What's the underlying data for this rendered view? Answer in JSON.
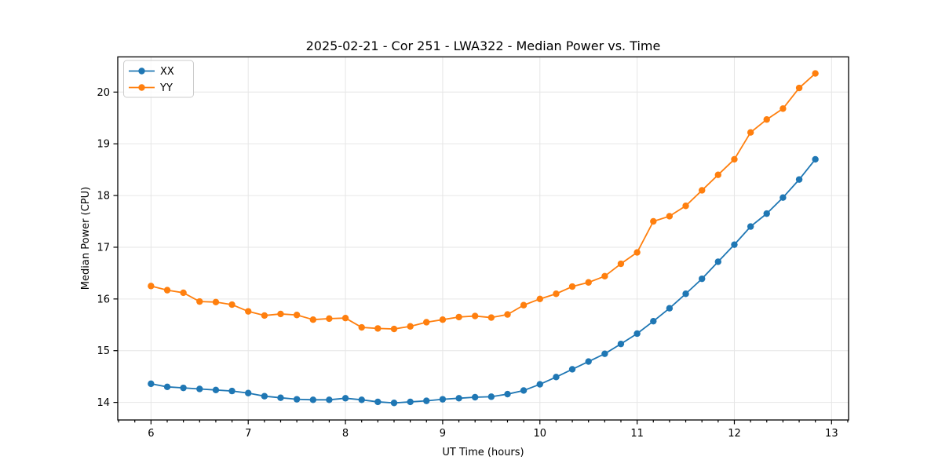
{
  "figure": {
    "background": "#ffffff",
    "title": "2025-02-21 - Cor 251 - LWA322 - Median Power vs. Time"
  },
  "axes": {
    "xlabel": "UT Time (hours)",
    "ylabel": "Median Power (CPU)",
    "xtick_labels": [
      "6",
      "7",
      "8",
      "9",
      "10",
      "11",
      "12",
      "13"
    ],
    "ytick_labels": [
      "14",
      "15",
      "16",
      "17",
      "18",
      "19",
      "20"
    ]
  },
  "legend": {
    "position": "upper left",
    "entries": [
      {
        "label": "XX",
        "color": "#1f77b4"
      },
      {
        "label": "YY",
        "color": "#ff7f0e"
      }
    ]
  },
  "style": {
    "grid_color": "#e6e6e6",
    "spine_color": "#000000",
    "legend_edge_color": "#cccccc",
    "series_xx_color": "#1f77b4",
    "series_yy_color": "#ff7f0e"
  },
  "chart_data": {
    "type": "line",
    "title": "2025-02-21 - Cor 251 - LWA322 - Median Power vs. Time",
    "xlabel": "UT Time (hours)",
    "ylabel": "Median Power (CPU)",
    "grid": true,
    "legend_position": "upper left",
    "xlim": [
      5.658,
      13.175
    ],
    "ylim": [
      13.66,
      20.68
    ],
    "xticks": [
      6,
      7,
      8,
      9,
      10,
      11,
      12,
      13
    ],
    "yticks": [
      14,
      15,
      16,
      17,
      18,
      19,
      20
    ],
    "x_minor_step": 0.16667,
    "x": [
      6.0,
      6.167,
      6.333,
      6.5,
      6.667,
      6.833,
      7.0,
      7.167,
      7.333,
      7.5,
      7.667,
      7.833,
      8.0,
      8.167,
      8.333,
      8.5,
      8.667,
      8.833,
      9.0,
      9.167,
      9.333,
      9.5,
      9.667,
      9.833,
      10.0,
      10.167,
      10.333,
      10.5,
      10.667,
      10.833,
      11.0,
      11.167,
      11.333,
      11.5,
      11.667,
      11.833,
      12.0,
      12.167,
      12.333,
      12.5,
      12.667,
      12.833
    ],
    "series": [
      {
        "name": "XX",
        "color": "#1f77b4",
        "marker": "circle",
        "values": [
          14.36,
          14.3,
          14.28,
          14.26,
          14.24,
          14.22,
          14.18,
          14.12,
          14.09,
          14.06,
          14.05,
          14.05,
          14.08,
          14.05,
          14.01,
          13.99,
          14.01,
          14.03,
          14.06,
          14.08,
          14.1,
          14.11,
          14.16,
          14.23,
          14.35,
          14.49,
          14.64,
          14.79,
          14.94,
          15.13,
          15.33,
          15.57,
          15.82,
          16.1,
          16.39,
          16.72,
          17.05,
          17.4,
          17.65,
          17.96,
          18.31,
          18.7
        ]
      },
      {
        "name": "YY",
        "color": "#ff7f0e",
        "marker": "circle",
        "values": [
          16.25,
          16.17,
          16.12,
          15.95,
          15.94,
          15.89,
          15.76,
          15.68,
          15.71,
          15.69,
          15.6,
          15.62,
          15.63,
          15.45,
          15.43,
          15.42,
          15.47,
          15.55,
          15.6,
          15.65,
          15.67,
          15.64,
          15.7,
          15.88,
          16.0,
          16.1,
          16.24,
          16.32,
          16.44,
          16.68,
          16.9,
          17.5,
          17.6,
          17.8,
          18.1,
          18.4,
          18.7,
          19.22,
          19.47,
          19.68,
          20.08,
          20.36
        ]
      }
    ]
  }
}
